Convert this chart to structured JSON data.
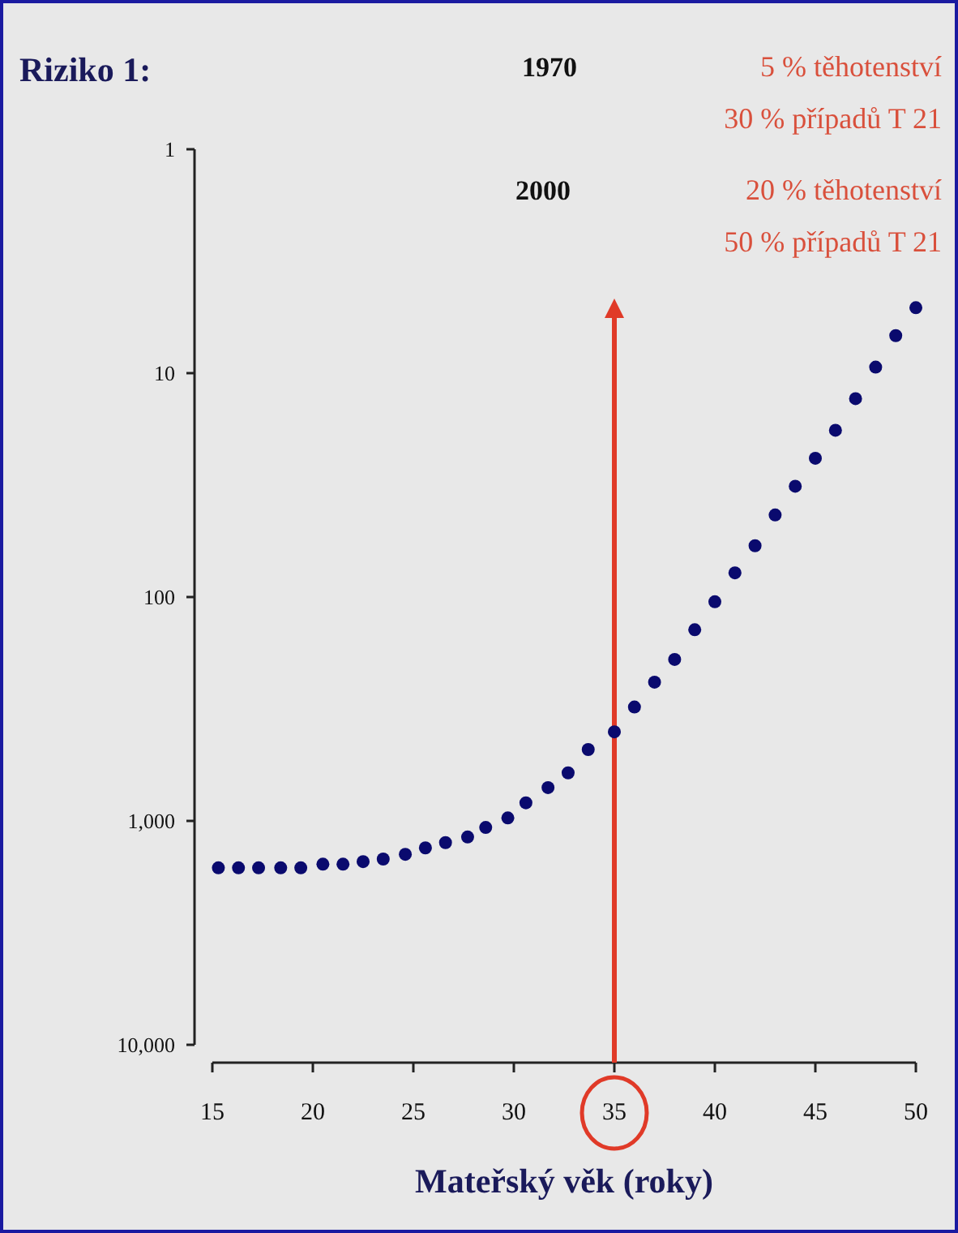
{
  "chart_data": {
    "type": "scatter",
    "ylabel": "Riziko 1:",
    "xlabel": "Mateřský věk (roky)",
    "x": [
      15.3,
      16.3,
      17.3,
      18.4,
      19.4,
      20.5,
      21.5,
      22.5,
      23.5,
      24.6,
      25.6,
      26.6,
      27.7,
      28.6,
      29.7,
      30.6,
      31.7,
      32.7,
      33.7,
      35,
      36,
      37,
      38,
      39,
      40,
      41,
      42,
      43,
      44,
      45,
      46,
      47,
      48,
      49,
      50
    ],
    "series": [
      {
        "color": "#0a0a6e",
        "values": [
          1620,
          1620,
          1620,
          1620,
          1620,
          1560,
          1560,
          1520,
          1480,
          1410,
          1320,
          1250,
          1180,
          1070,
          970,
          830,
          710,
          610,
          480,
          400,
          310,
          240,
          190,
          140,
          105,
          78,
          59,
          43,
          32,
          24,
          18,
          13,
          9.4,
          6.8,
          5.1
        ]
      }
    ],
    "xlim": [
      15,
      50
    ],
    "xticks": [
      15,
      20,
      25,
      30,
      35,
      40,
      45,
      50
    ],
    "ylim": [
      10000,
      1
    ],
    "yticks": [
      1,
      10,
      100,
      {
        "value": 1000,
        "label": "1,000"
      },
      {
        "value": 10000,
        "label": "10,000"
      }
    ],
    "log": "y",
    "grid": false,
    "marker": "circle",
    "ref_lines": [
      {
        "axis": "x",
        "value": 35,
        "color": "#e03a28"
      }
    ],
    "annotations": [
      "1970",
      "5 % těhotenství",
      "30 % případů T 21",
      "2000",
      "20 % těhotenství",
      "50 % případů T 21"
    ]
  }
}
